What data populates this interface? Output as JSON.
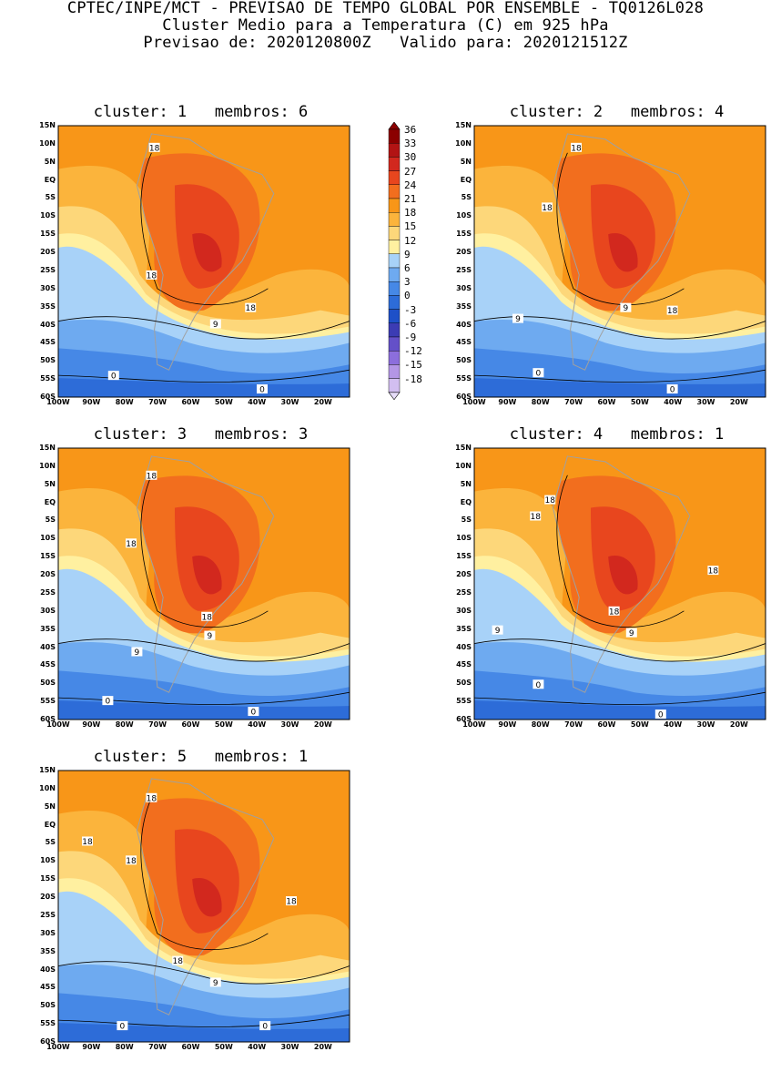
{
  "header": {
    "line1": "CPTEC/INPE/MCT - PREVISAO DE TEMPO GLOBAL POR ENSEMBLE - TQ0126L028",
    "line2": "Cluster Medio para a Temperatura (C) em 925 hPa",
    "line3": "Previsao de: 2020120800Z   Valido para: 2020121512Z"
  },
  "lat_labels": [
    "15N",
    "10N",
    "5N",
    "EQ",
    "5S",
    "10S",
    "15S",
    "20S",
    "25S",
    "30S",
    "35S",
    "40S",
    "45S",
    "50S",
    "55S",
    "60S"
  ],
  "lon_labels": [
    "100W",
    "90W",
    "80W",
    "70W",
    "60W",
    "50W",
    "40W",
    "30W",
    "20W"
  ],
  "colorbar": {
    "labels": [
      "36",
      "33",
      "30",
      "27",
      "24",
      "21",
      "18",
      "15",
      "12",
      "9",
      "6",
      "3",
      "0",
      "-3",
      "-6",
      "-9",
      "-12",
      "-15",
      "-18"
    ],
    "colors": [
      "#8b0000",
      "#b21414",
      "#d2281e",
      "#e8461e",
      "#f26e1e",
      "#f89618",
      "#fbb43c",
      "#fdd77a",
      "#fff0a0",
      "#a8d2f8",
      "#6eaaf0",
      "#4688e6",
      "#2d6cd8",
      "#1e50c8",
      "#3c3cb4",
      "#6450c8",
      "#8c6edc",
      "#b496e6",
      "#d2bef0"
    ]
  },
  "clusters": [
    {
      "title": "cluster: 1   membros: 6",
      "contour_labels": [
        "18",
        "18",
        "18",
        "9",
        "0",
        "0"
      ]
    },
    {
      "title": "cluster: 2   membros: 4",
      "contour_labels": [
        "18",
        "18",
        "18",
        "9",
        "9",
        "0",
        "0"
      ]
    },
    {
      "title": "cluster: 3   membros: 3",
      "contour_labels": [
        "18",
        "18",
        "18",
        "9",
        "9",
        "0",
        "0"
      ]
    },
    {
      "title": "cluster: 4   membros: 1",
      "contour_labels": [
        "18",
        "18",
        "18",
        "18",
        "9",
        "9",
        "0",
        "0"
      ]
    },
    {
      "title": "cluster: 5   membros: 1",
      "contour_labels": [
        "18",
        "18",
        "18",
        "18",
        "18",
        "9",
        "0",
        "0"
      ]
    }
  ]
}
